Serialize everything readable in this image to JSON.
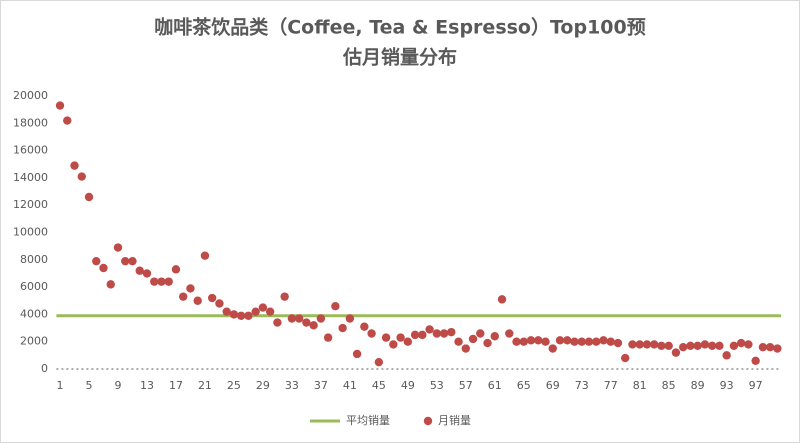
{
  "chart_data": {
    "type": "scatter",
    "title_lines": [
      "咖啡茶饮品类（Coffee, Tea & Espresso）Top100预",
      "估月销量分布"
    ],
    "x": [
      1,
      2,
      3,
      4,
      5,
      6,
      7,
      8,
      9,
      10,
      11,
      12,
      13,
      14,
      15,
      16,
      17,
      18,
      19,
      20,
      21,
      22,
      23,
      24,
      25,
      26,
      27,
      28,
      29,
      30,
      31,
      32,
      33,
      34,
      35,
      36,
      37,
      38,
      39,
      40,
      41,
      42,
      43,
      44,
      45,
      46,
      47,
      48,
      49,
      50,
      51,
      52,
      53,
      54,
      55,
      56,
      57,
      58,
      59,
      60,
      61,
      62,
      63,
      64,
      65,
      66,
      67,
      68,
      69,
      70,
      71,
      72,
      73,
      74,
      75,
      76,
      77,
      78,
      79,
      80,
      81,
      82,
      83,
      84,
      85,
      86,
      87,
      88,
      89,
      90,
      91,
      92,
      93,
      94,
      95,
      96,
      97,
      98,
      99,
      100
    ],
    "series": [
      {
        "name": "月销量",
        "color": "#be4b48",
        "values": [
          19300,
          18200,
          14900,
          14100,
          12600,
          7900,
          7400,
          6200,
          8900,
          7900,
          7900,
          7200,
          7000,
          6400,
          6400,
          6400,
          7300,
          5300,
          5900,
          5000,
          8300,
          5200,
          4800,
          4200,
          4000,
          3900,
          3900,
          4200,
          4500,
          4200,
          3400,
          5300,
          3700,
          3700,
          3400,
          3200,
          3700,
          2300,
          4600,
          3000,
          3700,
          1100,
          3100,
          2600,
          500,
          2300,
          1800,
          2300,
          2000,
          2500,
          2500,
          2900,
          2600,
          2600,
          2700,
          2000,
          1500,
          2200,
          2600,
          1900,
          2400,
          5100,
          2600,
          2000,
          2000,
          2100,
          2100,
          2000,
          1500,
          2100,
          2100,
          2000,
          2000,
          2000,
          2000,
          2100,
          2000,
          1900,
          800,
          1800,
          1800,
          1800,
          1800,
          1700,
          1700,
          1200,
          1600,
          1700,
          1700,
          1800,
          1700,
          1700,
          1000,
          1700,
          1900,
          1800,
          600,
          1600,
          1600,
          1500
        ]
      }
    ],
    "average": {
      "name": "平均销量",
      "color": "#9bbb59",
      "value": 3900
    },
    "xlim": [
      0.5,
      100.5
    ],
    "xticks": [
      1,
      5,
      9,
      13,
      17,
      21,
      25,
      29,
      33,
      37,
      41,
      45,
      49,
      53,
      57,
      61,
      65,
      69,
      73,
      77,
      81,
      85,
      89,
      93,
      97
    ],
    "ylim": [
      0,
      20000
    ],
    "yticks": [
      0,
      2000,
      4000,
      6000,
      8000,
      10000,
      12000,
      14000,
      16000,
      18000,
      20000
    ],
    "legend": "bottom"
  }
}
